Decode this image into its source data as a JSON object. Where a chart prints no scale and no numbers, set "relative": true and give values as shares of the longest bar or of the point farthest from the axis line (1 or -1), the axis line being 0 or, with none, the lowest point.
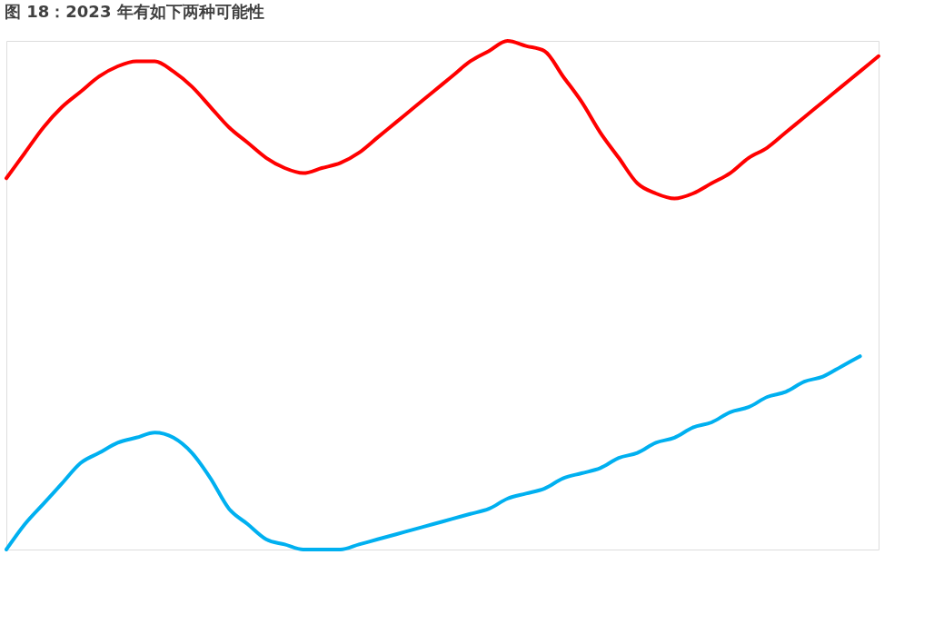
{
  "chart_data": {
    "type": "line",
    "title": "图 18：2023 年有如下两种可能性",
    "relative": true,
    "line_style": "solid",
    "marker": "none",
    "categories": [
      null,
      null,
      null,
      null,
      null,
      null,
      null,
      null,
      null,
      null,
      null,
      null,
      null,
      null,
      null,
      null,
      null,
      null,
      null,
      null,
      null,
      null,
      null,
      null,
      null,
      null,
      null,
      null,
      null,
      null,
      null,
      null,
      null,
      null,
      null,
      null,
      null,
      null,
      null,
      null,
      null,
      null,
      null,
      null,
      null,
      null,
      null,
      null
    ],
    "series": [
      {
        "color": "#ff0000",
        "values": [
          0.73,
          0.78,
          0.83,
          0.87,
          0.9,
          0.93,
          0.95,
          0.96,
          0.96,
          0.94,
          0.91,
          0.87,
          0.83,
          0.8,
          0.77,
          0.75,
          0.74,
          0.75,
          0.76,
          0.78,
          0.81,
          0.84,
          0.87,
          0.9,
          0.93,
          0.96,
          0.98,
          1.0,
          0.99,
          0.98,
          0.93,
          0.88,
          0.82,
          0.77,
          0.72,
          0.7,
          0.69,
          0.7,
          0.72,
          0.74,
          0.77,
          0.79,
          0.82,
          0.85,
          0.88,
          0.91,
          0.94,
          0.97
        ]
      },
      {
        "color": "#00b0f0",
        "values": [
          0.0,
          0.05,
          0.09,
          0.13,
          0.17,
          0.19,
          0.21,
          0.22,
          0.23,
          0.22,
          0.19,
          0.14,
          0.08,
          0.05,
          0.02,
          0.01,
          0.0,
          0.0,
          0.0,
          0.01,
          0.02,
          0.03,
          0.04,
          0.05,
          0.06,
          0.07,
          0.08,
          0.1,
          0.11,
          0.12,
          0.14,
          0.15,
          0.16,
          0.18,
          0.19,
          0.21,
          0.22,
          0.24,
          0.25,
          0.27,
          0.28,
          0.3,
          0.31,
          0.33,
          0.34,
          0.36,
          0.38,
          null
        ]
      }
    ]
  }
}
